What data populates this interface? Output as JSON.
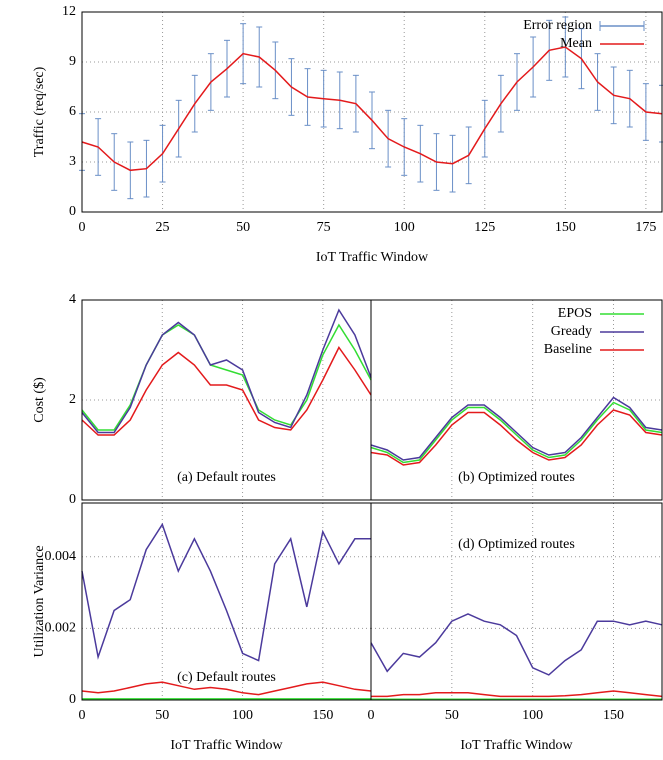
{
  "chart_data": [
    {
      "type": "line",
      "ylabel": "Traffic (req/sec)",
      "xlabel": "IoT Traffic Window",
      "x": [
        0,
        5,
        10,
        15,
        20,
        25,
        30,
        35,
        40,
        45,
        50,
        55,
        60,
        65,
        70,
        75,
        80,
        85,
        90,
        95,
        100,
        105,
        110,
        115,
        120,
        125,
        130,
        135,
        140,
        145,
        150,
        155,
        160,
        165,
        170,
        175,
        180
      ],
      "xlim": [
        0,
        180
      ],
      "xticks": [
        0,
        25,
        50,
        75,
        100,
        125,
        150,
        175
      ],
      "ylim": [
        0,
        12
      ],
      "yticks": [
        0,
        3,
        6,
        9,
        12
      ],
      "grid": true,
      "legend": "upper right",
      "series": [
        {
          "name": "Error region",
          "color": "#6a8fc7",
          "style": "errorbar",
          "values": [
            4.2,
            3.9,
            3.0,
            2.5,
            2.6,
            3.5,
            5.0,
            6.5,
            7.8,
            8.6,
            9.5,
            9.3,
            8.5,
            7.5,
            6.9,
            6.8,
            6.7,
            6.5,
            5.5,
            4.4,
            3.9,
            3.5,
            3.0,
            2.9,
            3.4,
            5.0,
            6.5,
            7.8,
            8.7,
            9.7,
            9.9,
            9.2,
            7.8,
            7.0,
            6.8,
            6.0,
            5.9
          ],
          "errors": [
            1.7,
            1.7,
            1.7,
            1.7,
            1.7,
            1.7,
            1.7,
            1.7,
            1.7,
            1.7,
            1.8,
            1.8,
            1.7,
            1.7,
            1.7,
            1.7,
            1.7,
            1.7,
            1.7,
            1.7,
            1.7,
            1.7,
            1.7,
            1.7,
            1.7,
            1.7,
            1.7,
            1.7,
            1.8,
            1.8,
            1.8,
            1.8,
            1.7,
            1.7,
            1.7,
            1.7,
            1.7
          ]
        },
        {
          "name": "Mean",
          "color": "#e31a1c",
          "values": [
            4.2,
            3.9,
            3.0,
            2.5,
            2.6,
            3.5,
            5.0,
            6.5,
            7.8,
            8.6,
            9.5,
            9.3,
            8.5,
            7.5,
            6.9,
            6.8,
            6.7,
            6.5,
            5.5,
            4.4,
            3.9,
            3.5,
            3.0,
            2.9,
            3.4,
            5.0,
            6.5,
            7.8,
            8.7,
            9.7,
            9.9,
            9.2,
            7.8,
            7.0,
            6.8,
            6.0,
            5.9
          ]
        }
      ]
    },
    {
      "type": "line",
      "ylabel": "Cost ($)",
      "annotation": "(a) Default routes",
      "annotation_position": "bottom",
      "x": [
        0,
        10,
        20,
        30,
        40,
        50,
        60,
        70,
        80,
        90,
        100,
        110,
        120,
        130,
        140,
        150,
        160,
        170,
        180
      ],
      "xlim": [
        0,
        180
      ],
      "xticks": [
        0,
        50,
        100,
        150
      ],
      "xtick_labels": false,
      "ylim": [
        0,
        4
      ],
      "yticks": [
        0,
        2,
        4
      ],
      "grid": true,
      "series": [
        {
          "name": "EPOS",
          "color": "#33dd33",
          "values": [
            1.8,
            1.4,
            1.4,
            1.9,
            2.7,
            3.3,
            3.5,
            3.3,
            2.7,
            2.6,
            2.5,
            1.8,
            1.6,
            1.5,
            2.0,
            2.9,
            3.5,
            3.0,
            2.4
          ]
        },
        {
          "name": "Gready",
          "color": "#4b3a9c",
          "values": [
            1.75,
            1.35,
            1.35,
            1.85,
            2.7,
            3.3,
            3.55,
            3.3,
            2.7,
            2.8,
            2.6,
            1.75,
            1.55,
            1.45,
            2.1,
            3.0,
            3.8,
            3.3,
            2.45
          ]
        },
        {
          "name": "Baseline",
          "color": "#e31a1c",
          "values": [
            1.6,
            1.3,
            1.3,
            1.6,
            2.2,
            2.7,
            2.95,
            2.7,
            2.3,
            2.3,
            2.2,
            1.6,
            1.45,
            1.4,
            1.8,
            2.4,
            3.05,
            2.6,
            2.1
          ]
        }
      ]
    },
    {
      "type": "line",
      "annotation": "(b) Optimized routes",
      "annotation_position": "bottom",
      "legend": "upper right",
      "x": [
        0,
        10,
        20,
        30,
        40,
        50,
        60,
        70,
        80,
        90,
        100,
        110,
        120,
        130,
        140,
        150,
        160,
        170,
        180
      ],
      "xlim": [
        0,
        180
      ],
      "xticks": [
        0,
        50,
        100,
        150
      ],
      "xtick_labels": false,
      "ylim": [
        0,
        4
      ],
      "yticks": [
        0,
        2,
        4
      ],
      "ytick_labels": false,
      "grid": true,
      "series": [
        {
          "name": "EPOS",
          "color": "#33dd33",
          "values": [
            1.05,
            0.95,
            0.75,
            0.8,
            1.2,
            1.6,
            1.85,
            1.85,
            1.6,
            1.3,
            1.0,
            0.85,
            0.9,
            1.2,
            1.6,
            1.95,
            1.8,
            1.4,
            1.35
          ]
        },
        {
          "name": "Gready",
          "color": "#4b3a9c",
          "values": [
            1.1,
            1.0,
            0.8,
            0.85,
            1.25,
            1.65,
            1.9,
            1.9,
            1.65,
            1.35,
            1.05,
            0.9,
            0.95,
            1.25,
            1.65,
            2.05,
            1.85,
            1.45,
            1.4
          ]
        },
        {
          "name": "Baseline",
          "color": "#e31a1c",
          "values": [
            0.95,
            0.9,
            0.7,
            0.75,
            1.1,
            1.5,
            1.75,
            1.75,
            1.5,
            1.2,
            0.95,
            0.8,
            0.85,
            1.1,
            1.5,
            1.8,
            1.7,
            1.35,
            1.3
          ]
        }
      ]
    },
    {
      "type": "line",
      "ylabel": "Utilization Variance",
      "xlabel": "IoT Traffic Window",
      "annotation": "(c) Default routes",
      "annotation_position": "bottom",
      "x": [
        0,
        10,
        20,
        30,
        40,
        50,
        60,
        70,
        80,
        90,
        100,
        110,
        120,
        130,
        140,
        150,
        160,
        170,
        180
      ],
      "xlim": [
        0,
        180
      ],
      "xticks": [
        0,
        50,
        100,
        150
      ],
      "ylim": [
        0,
        0.0055
      ],
      "yticks": [
        0,
        0.002,
        0.004
      ],
      "grid": true,
      "series": [
        {
          "name": "EPOS",
          "color": "#33dd33",
          "values": [
            3e-05,
            3e-05,
            3e-05,
            3e-05,
            3e-05,
            3e-05,
            3e-05,
            3e-05,
            3e-05,
            3e-05,
            3e-05,
            3e-05,
            3e-05,
            3e-05,
            3e-05,
            3e-05,
            3e-05,
            3e-05,
            3e-05
          ]
        },
        {
          "name": "Gready",
          "color": "#4b3a9c",
          "values": [
            0.0036,
            0.0012,
            0.0025,
            0.0028,
            0.0042,
            0.0049,
            0.0036,
            0.0045,
            0.0036,
            0.0025,
            0.0013,
            0.0011,
            0.0038,
            0.0045,
            0.0026,
            0.0047,
            0.0038,
            0.0045,
            0.0045
          ]
        },
        {
          "name": "Baseline",
          "color": "#e31a1c",
          "values": [
            0.00025,
            0.0002,
            0.00025,
            0.00035,
            0.00045,
            0.0005,
            0.0004,
            0.0003,
            0.00035,
            0.0003,
            0.0002,
            0.00015,
            0.00025,
            0.00035,
            0.00045,
            0.0005,
            0.0004,
            0.0003,
            0.00025
          ]
        }
      ]
    },
    {
      "type": "line",
      "xlabel": "IoT Traffic Window",
      "annotation": "(d) Optimized routes",
      "annotation_position": "top",
      "x": [
        0,
        10,
        20,
        30,
        40,
        50,
        60,
        70,
        80,
        90,
        100,
        110,
        120,
        130,
        140,
        150,
        160,
        170,
        180
      ],
      "xlim": [
        0,
        180
      ],
      "xticks": [
        0,
        50,
        100,
        150
      ],
      "ylim": [
        0,
        0.0055
      ],
      "yticks": [
        0,
        0.002,
        0.004
      ],
      "ytick_labels": false,
      "grid": true,
      "series": [
        {
          "name": "EPOS",
          "color": "#33dd33",
          "values": [
            2e-05,
            2e-05,
            2e-05,
            2e-05,
            2e-05,
            2e-05,
            2e-05,
            2e-05,
            2e-05,
            2e-05,
            2e-05,
            2e-05,
            2e-05,
            2e-05,
            2e-05,
            2e-05,
            2e-05,
            2e-05,
            2e-05
          ]
        },
        {
          "name": "Gready",
          "color": "#4b3a9c",
          "values": [
            0.0016,
            0.0008,
            0.0013,
            0.0012,
            0.0016,
            0.0022,
            0.0024,
            0.0022,
            0.0021,
            0.0018,
            0.0009,
            0.0007,
            0.0011,
            0.0014,
            0.0022,
            0.0022,
            0.0021,
            0.0022,
            0.0021
          ]
        },
        {
          "name": "Baseline",
          "color": "#e31a1c",
          "values": [
            0.0001,
            0.0001,
            0.00015,
            0.00015,
            0.0002,
            0.0002,
            0.0002,
            0.00015,
            0.0001,
            0.0001,
            0.0001,
            0.0001,
            0.00012,
            0.00015,
            0.0002,
            0.00025,
            0.0002,
            0.00015,
            0.0001
          ]
        }
      ]
    }
  ]
}
